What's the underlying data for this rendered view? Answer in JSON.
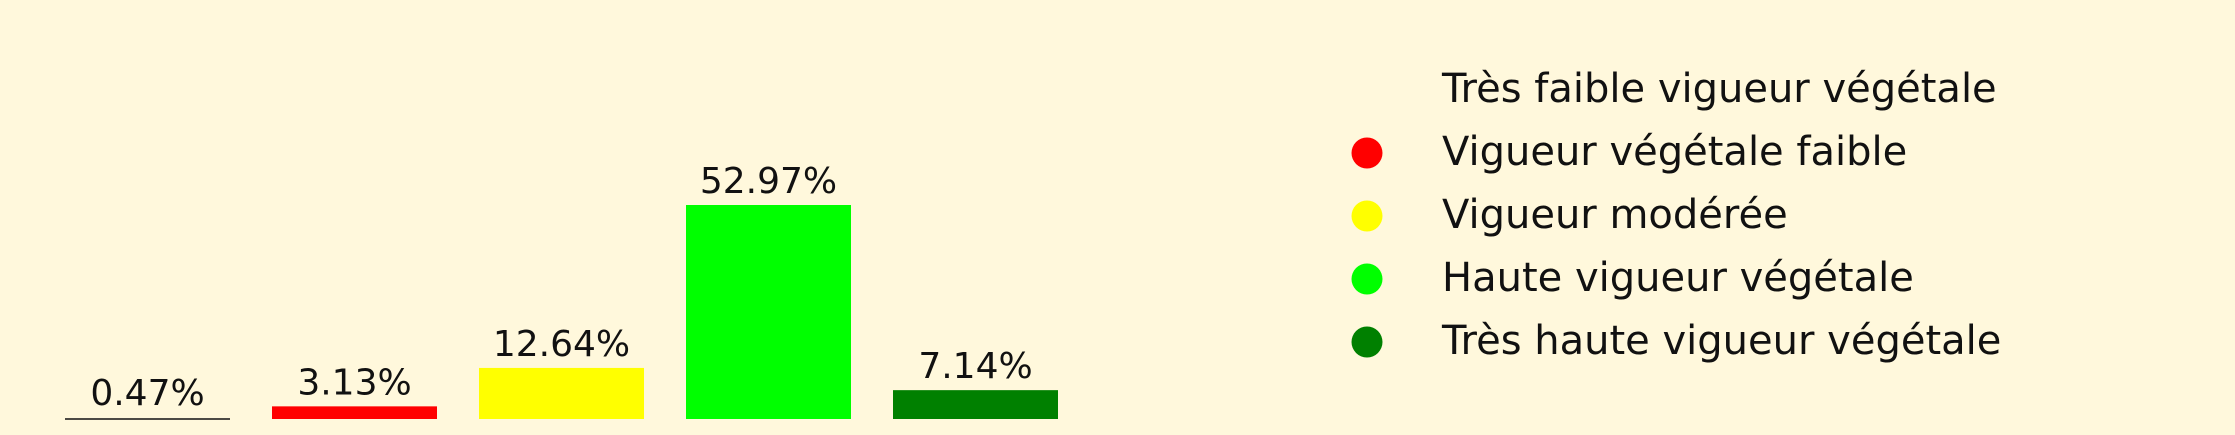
{
  "chart_data": {
    "type": "bar",
    "title": "",
    "xlabel": "",
    "ylabel": "",
    "ylim": [
      0,
      60
    ],
    "grid": false,
    "legend_position": "right",
    "categories": [
      "Très faible vigueur végétale",
      "Vigueur végétale faible",
      "Vigueur modérée",
      "Haute vigueur végétale",
      "Très haute vigueur végétale"
    ],
    "values": [
      0.47,
      3.13,
      12.64,
      52.97,
      7.14
    ],
    "value_labels": [
      "0.47%",
      "3.13%",
      "12.64%",
      "52.97%",
      "7.14%"
    ],
    "colors": [
      "#fff8dc",
      "#ff0000",
      "#ffff00",
      "#00ff00",
      "#008000"
    ]
  }
}
